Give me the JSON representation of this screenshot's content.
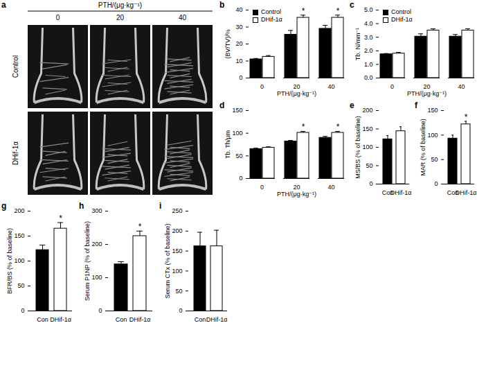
{
  "panel_a": {
    "panel": "a",
    "title": "PTH/(μg·kg⁻¹)",
    "columns": [
      "0",
      "20",
      "40"
    ],
    "rows": [
      "Control",
      "DHif-1α"
    ]
  },
  "chart_data": [
    {
      "panel": "b",
      "type": "bar",
      "xlabel": "PTH/(μg·kg⁻¹)",
      "ylabel": "(BV/TV)/%",
      "categories": [
        "0",
        "20",
        "40"
      ],
      "series": [
        {
          "name": "Control",
          "color": "#000000",
          "values": [
            11,
            25.5,
            29
          ],
          "errors": [
            0.5,
            2.5,
            2
          ]
        },
        {
          "name": "DHif-1α",
          "color": "#ffffff",
          "values": [
            12.5,
            35.5,
            35.5
          ],
          "errors": [
            0.7,
            1.5,
            1.5
          ]
        }
      ],
      "annotations": [
        {
          "category": "20",
          "series": "DHif-1α",
          "text": "*"
        },
        {
          "category": "40",
          "series": "DHif-1α",
          "text": "*"
        }
      ],
      "ylim": [
        0,
        40
      ],
      "yticks": [
        0,
        10,
        20,
        30,
        40
      ],
      "legend": "top-left"
    },
    {
      "panel": "c",
      "type": "bar",
      "xlabel": "PTH/(μg·kg⁻¹)",
      "ylabel": "Tb. N/mm⁻¹",
      "categories": [
        "0",
        "20",
        "40"
      ],
      "series": [
        {
          "name": "Control",
          "color": "#000000",
          "values": [
            1.75,
            3.05,
            3.05
          ],
          "errors": [
            0.05,
            0.2,
            0.15
          ]
        },
        {
          "name": "DHif-1α",
          "color": "#ffffff",
          "values": [
            1.8,
            3.5,
            3.5
          ],
          "errors": [
            0.08,
            0.12,
            0.12
          ]
        }
      ],
      "annotations": [],
      "ylim": [
        0,
        5
      ],
      "yticks": [
        0,
        1,
        2,
        3,
        4,
        5
      ],
      "legend": "top-left"
    },
    {
      "panel": "d",
      "type": "bar",
      "xlabel": "PTH/(μg·kg⁻¹)",
      "ylabel": "Tb. Th/μm",
      "categories": [
        "0",
        "20",
        "40"
      ],
      "series": [
        {
          "name": "Control",
          "color": "#000000",
          "values": [
            65,
            82,
            90
          ],
          "errors": [
            2,
            2,
            3
          ]
        },
        {
          "name": "DHif-1α",
          "color": "#ffffff",
          "values": [
            68,
            101,
            101
          ],
          "errors": [
            2,
            3,
            3
          ]
        }
      ],
      "annotations": [
        {
          "category": "20",
          "series": "DHif-1α",
          "text": "*"
        },
        {
          "category": "40",
          "series": "DHif-1α",
          "text": "*"
        }
      ],
      "ylim": [
        0,
        150
      ],
      "yticks": [
        0,
        50,
        100,
        150
      ]
    },
    {
      "panel": "e",
      "type": "bar",
      "ylabel": "MS/BS (% of baseline)",
      "categories": [
        "Con",
        "DHif-1α"
      ],
      "values": [
        122,
        144
      ],
      "errors": [
        10,
        12
      ],
      "colors": [
        "#000000",
        "#ffffff"
      ],
      "annotations": [],
      "ylim": [
        0,
        200
      ],
      "yticks": [
        0,
        50,
        100,
        150,
        200
      ]
    },
    {
      "panel": "f",
      "type": "bar",
      "ylabel": "MAR (% of baseline)",
      "categories": [
        "Con",
        "DHif-1α"
      ],
      "values": [
        93,
        122
      ],
      "errors": [
        7,
        6
      ],
      "colors": [
        "#000000",
        "#ffffff"
      ],
      "annotations": [
        {
          "category": "DHif-1α",
          "text": "*"
        }
      ],
      "ylim": [
        0,
        150
      ],
      "yticks": [
        0,
        50,
        100,
        150
      ]
    },
    {
      "panel": "g",
      "type": "bar",
      "ylabel": "BFR/BS (% of baseline)",
      "categories": [
        "Con",
        "DHif-1α"
      ],
      "values": [
        122,
        165
      ],
      "errors": [
        10,
        12
      ],
      "colors": [
        "#000000",
        "#ffffff"
      ],
      "annotations": [
        {
          "category": "DHif-1α",
          "text": "*"
        }
      ],
      "ylim": [
        0,
        200
      ],
      "yticks": [
        0,
        50,
        100,
        150,
        200
      ]
    },
    {
      "panel": "h",
      "type": "bar",
      "ylabel": "Serum P1NP (% of baseline)",
      "categories": [
        "Con",
        "DHif-1α"
      ],
      "values": [
        140,
        225
      ],
      "errors": [
        8,
        15
      ],
      "colors": [
        "#000000",
        "#ffffff"
      ],
      "annotations": [
        {
          "category": "DHif-1α",
          "text": "*"
        }
      ],
      "ylim": [
        0,
        300
      ],
      "yticks": [
        0,
        100,
        200,
        300
      ]
    },
    {
      "panel": "i",
      "type": "bar",
      "ylabel": "Serum CTx (% of baseline)",
      "categories": [
        "Con",
        "DHif-1α"
      ],
      "values": [
        162,
        162
      ],
      "errors": [
        35,
        40
      ],
      "colors": [
        "#000000",
        "#ffffff"
      ],
      "annotations": [],
      "ylim": [
        0,
        250
      ],
      "yticks": [
        0,
        50,
        100,
        150,
        200,
        250
      ]
    }
  ]
}
